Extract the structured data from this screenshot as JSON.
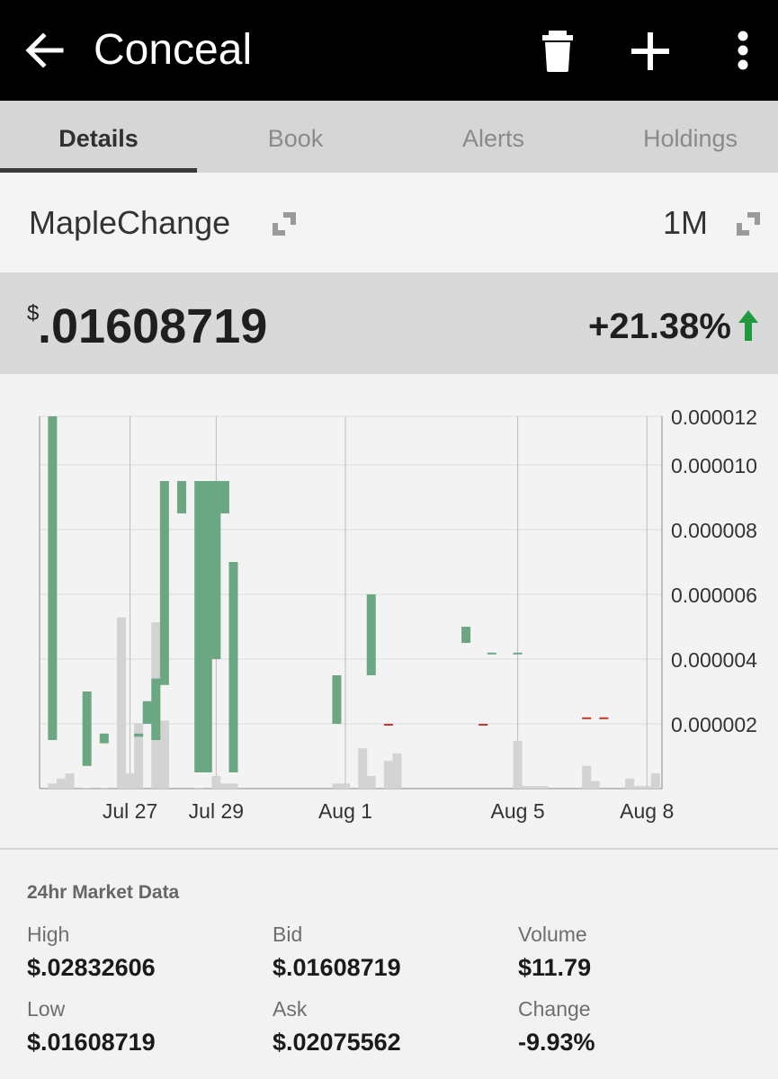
{
  "appbar": {
    "title": "Conceal",
    "icons": [
      "arrow-left-icon",
      "trash-icon",
      "plus-icon",
      "more-vert-icon"
    ]
  },
  "tabs": [
    {
      "label": "Details",
      "active": true
    },
    {
      "label": "Book",
      "active": false
    },
    {
      "label": "Alerts",
      "active": false
    },
    {
      "label": "Holdings",
      "active": false
    }
  ],
  "selector": {
    "exchange": "MapleChange",
    "range": "1M"
  },
  "price": {
    "currency": "$",
    "value": ".01608719",
    "change": "+21.38%",
    "direction": "up"
  },
  "colors": {
    "up": "#6ba783",
    "down": "#c0392b",
    "volume": "#d3d3d3",
    "arrow": "#1e9a3a"
  },
  "chart_data": {
    "type": "candlestick",
    "y_ticks": [
      "0.000012",
      "0.000010",
      "0.000008",
      "0.000006",
      "0.000004",
      "0.000002"
    ],
    "ylim": [
      0,
      1.15e-05
    ],
    "x_ticks": [
      {
        "label": "Jul 27",
        "day": 27
      },
      {
        "label": "Jul 29",
        "day": 29
      },
      {
        "label": "Aug 1",
        "day": 32
      },
      {
        "label": "Aug 5",
        "day": 36
      },
      {
        "label": "Aug 8",
        "day": 39
      }
    ],
    "candles": [
      {
        "day": 25.2,
        "low": 1.5e-06,
        "high": 1.15e-05,
        "dir": "up"
      },
      {
        "day": 26.0,
        "low": 7e-07,
        "high": 3e-06,
        "dir": "up"
      },
      {
        "day": 26.4,
        "low": 1.4e-06,
        "high": 1.7e-06,
        "dir": "up"
      },
      {
        "day": 27.2,
        "low": 1.6e-06,
        "high": 1.7e-06,
        "dir": "up"
      },
      {
        "day": 27.4,
        "low": 2e-06,
        "high": 2.7e-06,
        "dir": "up"
      },
      {
        "day": 27.6,
        "low": 1.5e-06,
        "high": 3.4e-06,
        "dir": "up"
      },
      {
        "day": 27.8,
        "low": 3.2e-06,
        "high": 9.5e-06,
        "dir": "up"
      },
      {
        "day": 28.2,
        "low": 8.5e-06,
        "high": 9.5e-06,
        "dir": "up"
      },
      {
        "day": 28.6,
        "low": 5e-07,
        "high": 9.5e-06,
        "dir": "up"
      },
      {
        "day": 28.8,
        "low": 5e-07,
        "high": 9.5e-06,
        "dir": "up"
      },
      {
        "day": 29.0,
        "low": 4e-06,
        "high": 9.5e-06,
        "dir": "up"
      },
      {
        "day": 29.2,
        "low": 8.5e-06,
        "high": 9.5e-06,
        "dir": "up"
      },
      {
        "day": 29.4,
        "low": 5e-07,
        "high": 7e-06,
        "dir": "up"
      },
      {
        "day": 31.8,
        "low": 2e-06,
        "high": 3.5e-06,
        "dir": "up"
      },
      {
        "day": 32.6,
        "low": 3.5e-06,
        "high": 6e-06,
        "dir": "up"
      },
      {
        "day": 33.0,
        "low": 2e-06,
        "high": 2e-06,
        "dir": "down"
      },
      {
        "day": 34.8,
        "low": 4.5e-06,
        "high": 5e-06,
        "dir": "up"
      },
      {
        "day": 35.2,
        "low": 2e-06,
        "high": 2e-06,
        "dir": "down"
      },
      {
        "day": 35.4,
        "low": 4.2e-06,
        "high": 4.2e-06,
        "dir": "up"
      },
      {
        "day": 36.0,
        "low": 4.2e-06,
        "high": 4.2e-06,
        "dir": "up"
      },
      {
        "day": 37.6,
        "low": 2.2e-06,
        "high": 2.2e-06,
        "dir": "down"
      },
      {
        "day": 38.0,
        "low": 2.2e-06,
        "high": 2.2e-06,
        "dir": "down"
      }
    ],
    "volume_max": 1.0,
    "volume": [
      {
        "day": 25.2,
        "v": 0.02
      },
      {
        "day": 25.4,
        "v": 0.04
      },
      {
        "day": 25.6,
        "v": 0.06
      },
      {
        "day": 26.0,
        "v": 0.0
      },
      {
        "day": 26.4,
        "v": 0.0
      },
      {
        "day": 26.8,
        "v": 0.68
      },
      {
        "day": 27.0,
        "v": 0.06
      },
      {
        "day": 27.2,
        "v": 0.26
      },
      {
        "day": 27.6,
        "v": 0.66
      },
      {
        "day": 27.8,
        "v": 0.27
      },
      {
        "day": 28.6,
        "v": 0.0
      },
      {
        "day": 29.0,
        "v": 0.05
      },
      {
        "day": 29.2,
        "v": 0.02
      },
      {
        "day": 29.4,
        "v": 0.02
      },
      {
        "day": 31.8,
        "v": 0.02
      },
      {
        "day": 32.0,
        "v": 0.02
      },
      {
        "day": 32.4,
        "v": 0.16
      },
      {
        "day": 32.6,
        "v": 0.05
      },
      {
        "day": 33.0,
        "v": 0.11
      },
      {
        "day": 33.2,
        "v": 0.14
      },
      {
        "day": 36.0,
        "v": 0.19
      },
      {
        "day": 36.2,
        "v": 0.01
      },
      {
        "day": 36.4,
        "v": 0.01
      },
      {
        "day": 36.6,
        "v": 0.01
      },
      {
        "day": 37.6,
        "v": 0.09
      },
      {
        "day": 37.8,
        "v": 0.03
      },
      {
        "day": 38.6,
        "v": 0.04
      },
      {
        "day": 38.8,
        "v": 0.01
      },
      {
        "day": 39.0,
        "v": 0.01
      },
      {
        "day": 39.2,
        "v": 0.06
      }
    ],
    "grid": true
  },
  "market": {
    "title": "24hr Market Data",
    "items": [
      {
        "label": "High",
        "value": "$.02832606"
      },
      {
        "label": "Bid",
        "value": "$.01608719"
      },
      {
        "label": "Volume",
        "value": "$11.79"
      },
      {
        "label": "Low",
        "value": "$.01608719"
      },
      {
        "label": "Ask",
        "value": "$.02075562"
      },
      {
        "label": "Change",
        "value": "-9.93%"
      }
    ]
  }
}
